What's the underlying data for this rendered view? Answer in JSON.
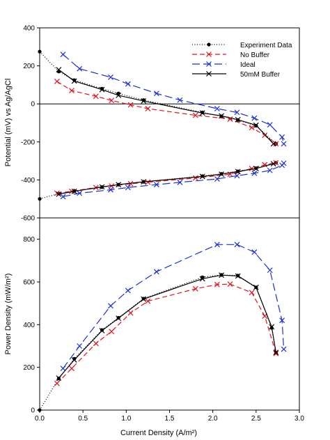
{
  "chart_data": {
    "type": "line",
    "shared_x_label": "Current Density (A/m²)",
    "legend": [
      "Experiment Data",
      "No Buffer",
      "Ideal",
      "50mM Buffer"
    ],
    "colors": {
      "Experiment Data": "#000000",
      "No Buffer": "#e0141e",
      "Ideal": "#1a2fd6",
      "50mM Buffer": "#000000"
    },
    "panels": [
      {
        "id": "top",
        "ylabel": "Potential (mV) vs Ag/AgCl",
        "xlim": [
          0,
          3.0
        ],
        "ylim": [
          -600,
          400
        ],
        "yticks": [
          -600,
          -400,
          -200,
          0,
          200,
          400
        ],
        "zero_line": true,
        "series": [
          {
            "name": "Experiment Data",
            "style": "dotted",
            "marker": "dot",
            "x": [
              0,
              0.22,
              0.4,
              0.72,
              0.91,
              1.2,
              1.88,
              2.1,
              2.29,
              2.5,
              2.73
            ],
            "y": [
              275,
              170,
              125,
              80,
              55,
              20,
              -45,
              -65,
              -85,
              -115,
              -210
            ]
          },
          {
            "name": "Experiment Data",
            "style": "dotted",
            "marker": "dot",
            "x": [
              0,
              0.22,
              0.4,
              0.72,
              0.91,
              1.2,
              1.88,
              2.1,
              2.29,
              2.5,
              2.73
            ],
            "y": [
              -500,
              -472,
              -458,
              -438,
              -425,
              -410,
              -380,
              -368,
              -355,
              -338,
              -310
            ]
          },
          {
            "name": "No Buffer",
            "style": "dashed",
            "marker": "x",
            "x": [
              0.2,
              0.37,
              0.65,
              0.83,
              1.05,
              1.25,
              1.8,
              2.2,
              2.45,
              2.6,
              2.73
            ],
            "y": [
              118,
              70,
              40,
              18,
              -5,
              -25,
              -60,
              -80,
              -125,
              -165,
              -210
            ]
          },
          {
            "name": "No Buffer",
            "style": "dashed",
            "marker": "x",
            "x": [
              0.2,
              0.37,
              0.65,
              0.83,
              1.05,
              1.25,
              1.8,
              2.2,
              2.45,
              2.6,
              2.73
            ],
            "y": [
              -470,
              -460,
              -440,
              -432,
              -420,
              -412,
              -390,
              -370,
              -340,
              -320,
              -310
            ]
          },
          {
            "name": "Ideal",
            "style": "longdash",
            "marker": "x",
            "x": [
              0.27,
              0.46,
              0.82,
              1.02,
              1.35,
              1.62,
              2.05,
              2.28,
              2.48,
              2.66,
              2.8,
              2.82
            ],
            "y": [
              260,
              185,
              140,
              105,
              55,
              20,
              -25,
              -45,
              -75,
              -110,
              -175,
              -210
            ]
          },
          {
            "name": "Ideal",
            "style": "longdash",
            "marker": "x",
            "x": [
              0.27,
              0.46,
              0.82,
              1.02,
              1.35,
              1.62,
              2.05,
              2.28,
              2.48,
              2.66,
              2.8,
              2.82
            ],
            "y": [
              -488,
              -470,
              -452,
              -440,
              -425,
              -413,
              -395,
              -378,
              -365,
              -350,
              -323,
              -312
            ]
          },
          {
            "name": "50mM Buffer",
            "style": "solid",
            "marker": "x",
            "x": [
              0.22,
              0.4,
              0.72,
              0.91,
              1.2,
              1.88,
              2.1,
              2.29,
              2.5,
              2.7
            ],
            "y": [
              180,
              120,
              75,
              45,
              15,
              -48,
              -63,
              -83,
              -112,
              -210
            ]
          },
          {
            "name": "50mM Buffer",
            "style": "solid",
            "marker": "x",
            "x": [
              0.22,
              0.4,
              0.72,
              0.91,
              1.2,
              1.88,
              2.1,
              2.29,
              2.5,
              2.7
            ],
            "y": [
              -475,
              -460,
              -437,
              -425,
              -410,
              -382,
              -370,
              -356,
              -340,
              -315
            ]
          }
        ]
      },
      {
        "id": "bottom",
        "ylabel": "Power Density (mW/m²)",
        "xlabel": "Current Density (A/m²)",
        "xlim": [
          0,
          3.0
        ],
        "ylim": [
          0,
          900
        ],
        "xticks": [
          "0.0",
          "0.5",
          "1.0",
          "1.5",
          "2.0",
          "2.5",
          "3.0"
        ],
        "yticks": [
          0,
          200,
          400,
          600,
          800
        ],
        "series": [
          {
            "name": "Experiment Data",
            "style": "dotted",
            "marker": "dot",
            "x": [
              0,
              0.22,
              0.4,
              0.72,
              0.91,
              1.2,
              1.88,
              2.1,
              2.29,
              2.5,
              2.68,
              2.73
            ],
            "y": [
              0,
              148,
              240,
              375,
              432,
              522,
              622,
              633,
              630,
              575,
              385,
              268
            ]
          },
          {
            "name": "No Buffer",
            "style": "dashed",
            "marker": "x",
            "x": [
              0.2,
              0.37,
              0.65,
              0.83,
              1.05,
              1.25,
              1.8,
              2.05,
              2.2,
              2.45,
              2.6,
              2.73
            ],
            "y": [
              125,
              195,
              312,
              368,
              455,
              510,
              568,
              588,
              590,
              550,
              440,
              265
            ]
          },
          {
            "name": "Ideal",
            "style": "longdash",
            "marker": "x",
            "x": [
              0.27,
              0.46,
              0.82,
              1.02,
              1.35,
              2.05,
              2.28,
              2.48,
              2.66,
              2.8,
              2.82
            ],
            "y": [
              195,
              300,
              488,
              560,
              648,
              775,
              775,
              740,
              655,
              420,
              285
            ]
          },
          {
            "name": "50mM Buffer",
            "style": "solid",
            "marker": "x",
            "x": [
              0.22,
              0.4,
              0.72,
              0.91,
              1.2,
              1.88,
              2.1,
              2.29,
              2.5,
              2.68,
              2.73
            ],
            "y": [
              150,
              235,
              372,
              430,
              520,
              615,
              632,
              628,
              575,
              390,
              270
            ]
          }
        ]
      }
    ]
  }
}
